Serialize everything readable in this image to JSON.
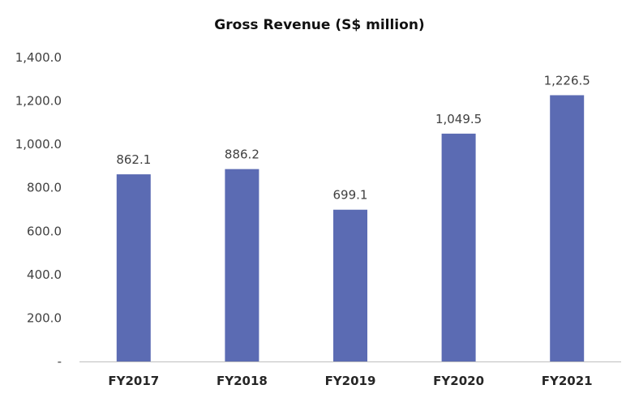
{
  "chart_data": {
    "type": "bar",
    "title": "Gross Revenue (S$ million)",
    "xlabel": "",
    "ylabel": "",
    "categories": [
      "FY2017",
      "FY2018",
      "FY2019",
      "FY2020",
      "FY2021"
    ],
    "values": [
      862.1,
      886.2,
      699.1,
      1049.5,
      1226.5
    ],
    "value_labels": [
      "862.1",
      "886.2",
      "699.1",
      "1,049.5",
      "1,226.5"
    ],
    "ylim": [
      0,
      1400
    ],
    "yticks": [
      0,
      200,
      400,
      600,
      800,
      1000,
      1200,
      1400
    ],
    "ytick_labels": [
      "-",
      "200.0",
      "400.0",
      "600.0",
      "800.0",
      "1,000.0",
      "1,200.0",
      "1,400.0"
    ],
    "grid": false,
    "legend": "none",
    "colors": {
      "bar": "#5B6BB3",
      "axis": "#BFBFBF"
    }
  }
}
